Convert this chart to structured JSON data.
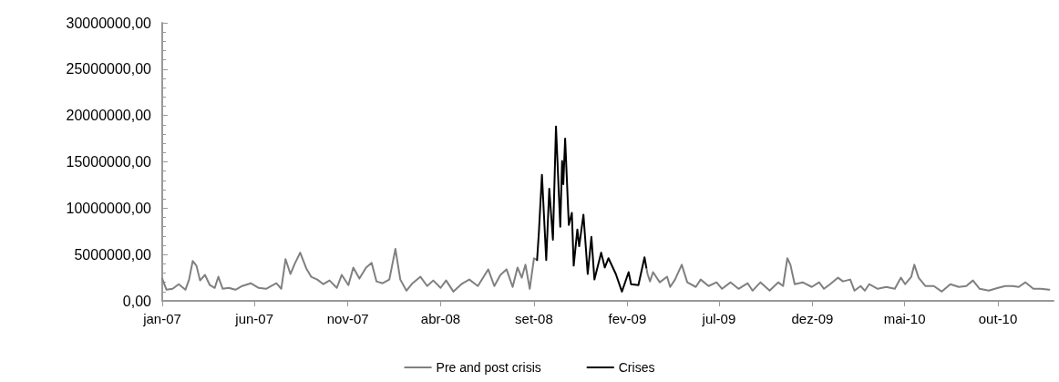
{
  "chart_data": {
    "type": "line",
    "xlim": [
      "2007-01-01",
      "2010-12-31"
    ],
    "xticks": [
      {
        "value": "2007-01",
        "label": "jan-07"
      },
      {
        "value": "2007-06",
        "label": "jun-07"
      },
      {
        "value": "2007-11",
        "label": "nov-07"
      },
      {
        "value": "2008-04",
        "label": "abr-08"
      },
      {
        "value": "2008-09",
        "label": "set-08"
      },
      {
        "value": "2009-02",
        "label": "fev-09"
      },
      {
        "value": "2009-07",
        "label": "jul-09"
      },
      {
        "value": "2009-12",
        "label": "dez-09"
      },
      {
        "value": "2010-05",
        "label": "mai-10"
      },
      {
        "value": "2010-10",
        "label": "out-10"
      }
    ],
    "ylim": [
      0,
      30000000
    ],
    "yticks": [
      {
        "value": 0,
        "label": "0,00"
      },
      {
        "value": 5000000,
        "label": "5000000,00"
      },
      {
        "value": 10000000,
        "label": "10000000,00"
      },
      {
        "value": 15000000,
        "label": "15000000,00"
      },
      {
        "value": 20000000,
        "label": "20000000,00"
      },
      {
        "value": 25000000,
        "label": "25000000,00"
      },
      {
        "value": 30000000,
        "label": "30000000,00"
      }
    ],
    "grid": false,
    "legend": "bottom",
    "marker": "none",
    "line_style": "solid",
    "series": [
      {
        "name": "Pre and post crisis",
        "color": "#808080",
        "x": [
          "2007-01-01",
          "2007-01-08",
          "2007-01-18",
          "2007-01-28",
          "2007-02-08",
          "2007-02-14",
          "2007-02-20",
          "2007-02-26",
          "2007-03-04",
          "2007-03-12",
          "2007-03-20",
          "2007-03-28",
          "2007-04-03",
          "2007-04-10",
          "2007-04-20",
          "2007-05-01",
          "2007-05-12",
          "2007-05-26",
          "2007-06-08",
          "2007-06-20",
          "2007-07-07",
          "2007-07-15",
          "2007-07-22",
          "2007-07-30",
          "2007-08-06",
          "2007-08-15",
          "2007-08-25",
          "2007-09-02",
          "2007-09-12",
          "2007-09-22",
          "2007-10-02",
          "2007-10-14",
          "2007-10-22",
          "2007-11-02",
          "2007-11-10",
          "2007-11-20",
          "2007-12-01",
          "2007-12-10",
          "2007-12-18",
          "2007-12-28",
          "2008-01-08",
          "2008-01-18",
          "2008-01-26",
          "2008-02-05",
          "2008-02-15",
          "2008-02-28",
          "2008-03-10",
          "2008-03-20",
          "2008-04-01",
          "2008-04-10",
          "2008-04-22",
          "2008-05-05",
          "2008-05-18",
          "2008-06-01",
          "2008-06-18",
          "2008-06-28",
          "2008-07-08",
          "2008-07-18",
          "2008-07-28",
          "2008-08-05",
          "2008-08-12",
          "2008-08-18",
          "2008-08-25",
          "2008-09-01",
          "2008-09-06",
          "2008-12-01",
          "2009-03-04",
          "2009-03-06",
          "2009-03-10",
          "2009-03-15",
          "2009-03-26",
          "2009-04-07",
          "2009-04-12",
          "2009-04-20",
          "2009-05-01",
          "2009-05-10",
          "2009-05-24",
          "2009-06-01",
          "2009-06-14",
          "2009-06-27",
          "2009-07-06",
          "2009-07-20",
          "2009-08-02",
          "2009-08-17",
          "2009-08-25",
          "2009-09-07",
          "2009-09-22",
          "2009-10-06",
          "2009-10-14",
          "2009-10-21",
          "2009-10-26",
          "2009-11-02",
          "2009-11-15",
          "2009-11-30",
          "2009-12-12",
          "2009-12-20",
          "2009-12-30",
          "2010-01-12",
          "2010-01-20",
          "2010-02-01",
          "2010-02-08",
          "2010-02-18",
          "2010-02-25",
          "2010-03-04",
          "2010-03-18",
          "2010-04-01",
          "2010-04-15",
          "2010-04-25",
          "2010-05-02",
          "2010-05-12",
          "2010-05-17",
          "2010-05-24",
          "2010-06-04",
          "2010-06-18",
          "2010-07-01",
          "2010-07-15",
          "2010-07-29",
          "2010-08-10",
          "2010-08-21",
          "2010-09-01",
          "2010-09-16",
          "2010-10-01",
          "2010-10-13",
          "2010-10-25",
          "2010-11-04",
          "2010-11-15",
          "2010-11-28",
          "2010-12-10",
          "2010-12-24"
        ],
        "values": [
          2400000,
          1200000,
          1300000,
          1800000,
          1200000,
          2300000,
          4300000,
          3800000,
          2200000,
          2800000,
          1700000,
          1400000,
          2600000,
          1300000,
          1400000,
          1200000,
          1600000,
          1900000,
          1400000,
          1300000,
          1900000,
          1300000,
          4500000,
          2900000,
          4000000,
          5200000,
          3500000,
          2600000,
          2300000,
          1800000,
          2200000,
          1400000,
          2800000,
          1700000,
          3600000,
          2400000,
          3600000,
          4100000,
          2100000,
          1900000,
          2300000,
          5600000,
          2300000,
          1100000,
          1900000,
          2600000,
          1600000,
          2200000,
          1400000,
          2200000,
          1000000,
          1800000,
          2300000,
          1600000,
          3400000,
          1600000,
          2800000,
          3400000,
          1500000,
          3600000,
          2500000,
          3900000,
          1300000,
          4600000,
          4400000,
          null,
          3600000,
          2900000,
          2100000,
          3100000,
          2000000,
          2600000,
          1500000,
          2300000,
          3900000,
          2000000,
          1500000,
          2300000,
          1600000,
          2000000,
          1300000,
          2000000,
          1300000,
          1900000,
          1100000,
          2000000,
          1100000,
          2000000,
          1600000,
          4600000,
          3900000,
          1800000,
          2000000,
          1500000,
          2000000,
          1300000,
          1800000,
          2500000,
          2100000,
          2300000,
          1100000,
          1600000,
          1100000,
          1800000,
          1300000,
          1500000,
          1300000,
          2500000,
          1800000,
          2600000,
          3900000,
          2500000,
          1600000,
          1600000,
          1000000,
          1800000,
          1500000,
          1600000,
          2200000,
          1300000,
          1100000,
          1400000,
          1600000,
          1600000,
          1500000,
          2000000,
          1300000,
          1300000,
          1200000
        ]
      },
      {
        "name": "Crises",
        "color": "#000000",
        "x": [
          "2008-09-06",
          "2008-09-09",
          "2008-09-14",
          "2008-09-21",
          "2008-09-26",
          "2008-10-02",
          "2008-10-07",
          "2008-10-14",
          "2008-10-17",
          "2008-10-19",
          "2008-10-22",
          "2008-10-28",
          "2008-11-02",
          "2008-11-05",
          "2008-11-11",
          "2008-11-14",
          "2008-11-21",
          "2008-11-28",
          "2008-12-04",
          "2008-12-09",
          "2008-12-20",
          "2008-12-26",
          "2009-01-01",
          "2009-01-13",
          "2009-01-23",
          "2009-02-03",
          "2009-02-07",
          "2009-02-19",
          "2009-03-01",
          "2009-03-04"
        ],
        "values": [
          4400000,
          7400000,
          13600000,
          4400000,
          12100000,
          6600000,
          18800000,
          8000000,
          15100000,
          12600000,
          17500000,
          8200000,
          9500000,
          3800000,
          7700000,
          5900000,
          9300000,
          2900000,
          6900000,
          2300000,
          5200000,
          3600000,
          4600000,
          2900000,
          1000000,
          3100000,
          1800000,
          1700000,
          4700000,
          3600000
        ]
      }
    ]
  }
}
